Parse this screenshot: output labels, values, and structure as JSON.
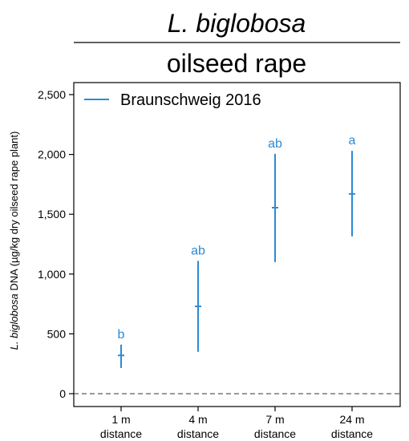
{
  "chart_data": {
    "type": "scatter",
    "title_species": "L. biglobosa",
    "title_crop": "oilseed rape",
    "ylabel_italic": "L. biglobosa",
    "ylabel_rest": " DNA (µg/kg dry oilseed rape plant)",
    "ylim": [
      -150,
      2500
    ],
    "yticks": [
      0,
      500,
      1000,
      1500,
      2000,
      2500
    ],
    "ytick_labels": [
      "0",
      "500",
      "1,000",
      "1,500",
      "2,000",
      "2,500"
    ],
    "categories": [
      {
        "line1": "1 m",
        "line2": "distance"
      },
      {
        "line1": "4 m",
        "line2": "distance"
      },
      {
        "line1": "7 m",
        "line2": "distance"
      },
      {
        "line1": "24 m",
        "line2": "distance"
      }
    ],
    "series": [
      {
        "name": "Braunschweig 2016",
        "color": "#2b8ad6",
        "mean": [
          320,
          730,
          1555,
          1670
        ],
        "lower": [
          215,
          350,
          1100,
          1315
        ],
        "upper": [
          410,
          1110,
          2005,
          2030
        ],
        "letters": [
          "b",
          "ab",
          "ab",
          "a"
        ]
      }
    ],
    "reference_line": {
      "y": 0,
      "style": "dashed"
    },
    "legend_position": "top-left",
    "grid": false
  }
}
